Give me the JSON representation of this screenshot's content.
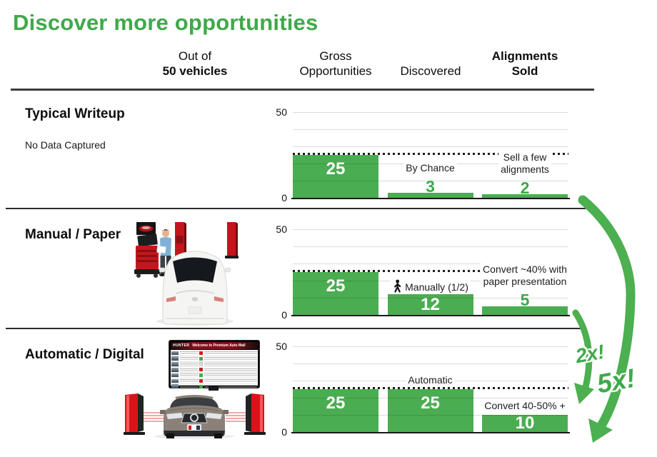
{
  "title": "Discover more opportunities",
  "colors": {
    "accent_green": "#3fa94a",
    "bar_green": "#4bad51",
    "arrow_green": "#4caf50"
  },
  "header": {
    "out_of_line1": "Out of",
    "out_of_line2": "50 vehicles",
    "gross_line1": "Gross",
    "gross_line2": "Opportunities",
    "discovered": "Discovered",
    "alignments_line1": "Alignments",
    "alignments_line2": "Sold"
  },
  "rows": [
    {
      "heading": "Typical Writeup",
      "note": "No Data Captured"
    },
    {
      "heading": "Manual / Paper"
    },
    {
      "heading": "Automatic / Digital"
    }
  ],
  "chart_data": [
    {
      "type": "bar",
      "row": "Typical Writeup",
      "categories": [
        "Gross Opportunities",
        "Discovered",
        "Alignments Sold"
      ],
      "values": [
        25,
        3,
        2
      ],
      "ylim": [
        0,
        50
      ],
      "yticks": [
        0,
        50
      ],
      "reference_line": 25,
      "grid": true,
      "annotations": [
        {
          "bar": 1,
          "lines": [
            "By Chance"
          ]
        },
        {
          "bar": 2,
          "lines": [
            "Sell a few",
            "alignments"
          ]
        }
      ]
    },
    {
      "type": "bar",
      "row": "Manual / Paper",
      "categories": [
        "Gross Opportunities",
        "Discovered",
        "Alignments Sold"
      ],
      "values": [
        25,
        12,
        5
      ],
      "ylim": [
        0,
        50
      ],
      "yticks": [
        0,
        50
      ],
      "reference_line": 25,
      "grid": true,
      "annotations": [
        {
          "bar": 1,
          "lines": [
            "Manually (1/2)"
          ],
          "icon": "walking-person"
        },
        {
          "bar": 2,
          "lines": [
            "Convert ~40% with",
            "paper presentation"
          ]
        }
      ]
    },
    {
      "type": "bar",
      "row": "Automatic / Digital",
      "categories": [
        "Gross Opportunities",
        "Discovered",
        "Alignments Sold"
      ],
      "values": [
        25,
        25,
        10
      ],
      "ylim": [
        0,
        50
      ],
      "yticks": [
        0,
        50
      ],
      "reference_line": 25,
      "grid": true,
      "annotations": [
        {
          "bar": 1,
          "lines": [
            "Automatic"
          ]
        },
        {
          "bar": 2,
          "lines": [
            "Convert 40-50% +"
          ]
        }
      ]
    }
  ],
  "arrows": {
    "small_label": "2x!",
    "big_label": "5x!"
  },
  "monitor": {
    "brand": "HUNTER",
    "welcome": "Welcome to Premium Auto Mall",
    "row_statuses": [
      "red",
      "green",
      "gray",
      "red",
      "green",
      "red",
      "green"
    ]
  }
}
